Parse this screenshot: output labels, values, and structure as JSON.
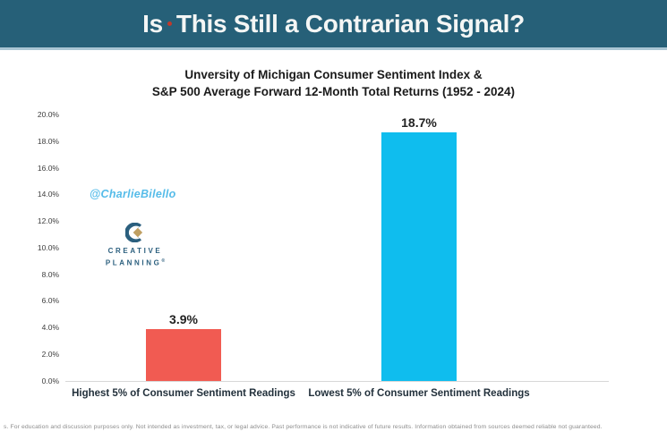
{
  "header": {
    "title_pre": "Is",
    "title_post": "This Still a Contrarian Signal?",
    "bg_color": "#266078",
    "dot_color": "#c0392b"
  },
  "chart_data": {
    "type": "bar",
    "title_line1": "Unversity of Michigan Consumer Sentiment Index &",
    "title_line2": "S&P 500 Average Forward 12-Month Total Returns (1952 - 2024)",
    "categories": [
      "Highest 5% of Consumer Sentiment Readings",
      "Lowest 5% of Consumer Sentiment Readings"
    ],
    "values": [
      3.9,
      18.7
    ],
    "value_labels": [
      "3.9%",
      "18.7%"
    ],
    "bar_colors": [
      "#f15b52",
      "#0fbdee"
    ],
    "ylim": [
      0,
      20
    ],
    "ytick_step": 2,
    "ytick_labels": [
      "20.0%",
      "18.0%",
      "16.0%",
      "14.0%",
      "12.0%",
      "10.0%",
      "8.0%",
      "6.0%",
      "4.0%",
      "2.0%",
      "0.0%"
    ],
    "grid": false,
    "legend": false
  },
  "watermark": {
    "handle": "@CharlieBilello",
    "color": "#56bce9"
  },
  "logo": {
    "word1": "CREATIVE",
    "word2": "PLANNING",
    "reg_mark": "®",
    "navy_color": "#2b5f7e",
    "gold_color": "#bf9f62"
  },
  "footer": {
    "disclaimer": "s. For education and discussion purposes only. Not intended as investment, tax, or legal advice. Past performance is not indicative of future results. Information obtained from sources deemed reliable not guaranteed."
  }
}
